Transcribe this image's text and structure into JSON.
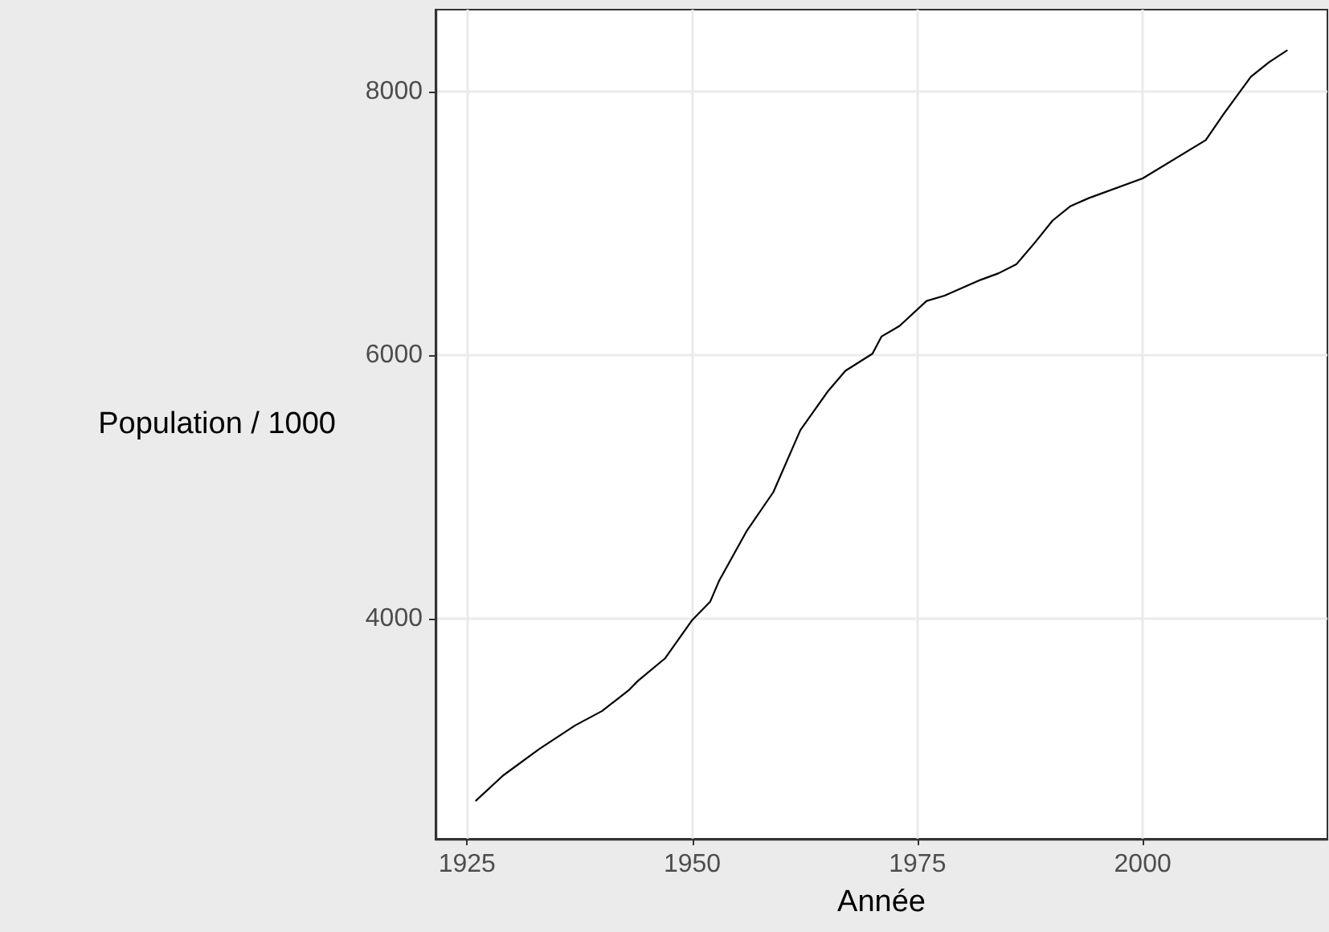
{
  "chart_data": {
    "type": "line",
    "xlabel": "Année",
    "ylabel": "Population / 1000",
    "color": "#000000",
    "x": [
      1926,
      1929,
      1933,
      1937,
      1940,
      1943,
      1944,
      1947,
      1950,
      1951,
      1952,
      1953,
      1956,
      1959,
      1962,
      1965,
      1967,
      1970,
      1971,
      1973,
      1976,
      1978,
      1982,
      1984,
      1986,
      1988,
      1990,
      1992,
      1994,
      2000,
      2007,
      2009,
      2012,
      2014,
      2016
    ],
    "values": [
      2620,
      2810,
      3010,
      3190,
      3300,
      3460,
      3530,
      3700,
      3990,
      4060,
      4130,
      4290,
      4660,
      4960,
      5430,
      5720,
      5880,
      6010,
      6140,
      6220,
      6410,
      6450,
      6570,
      6620,
      6690,
      6850,
      7020,
      7130,
      7190,
      7340,
      7630,
      7830,
      8110,
      8220,
      8310
    ],
    "xlim": [
      1921.5,
      2020.5
    ],
    "xticks": [
      1925,
      1950,
      1975,
      2000
    ],
    "ylim": [
      2330,
      8620
    ],
    "yticks": [
      4000,
      6000,
      8000
    ],
    "grid": true,
    "marker": "none",
    "line_style": "solid"
  }
}
